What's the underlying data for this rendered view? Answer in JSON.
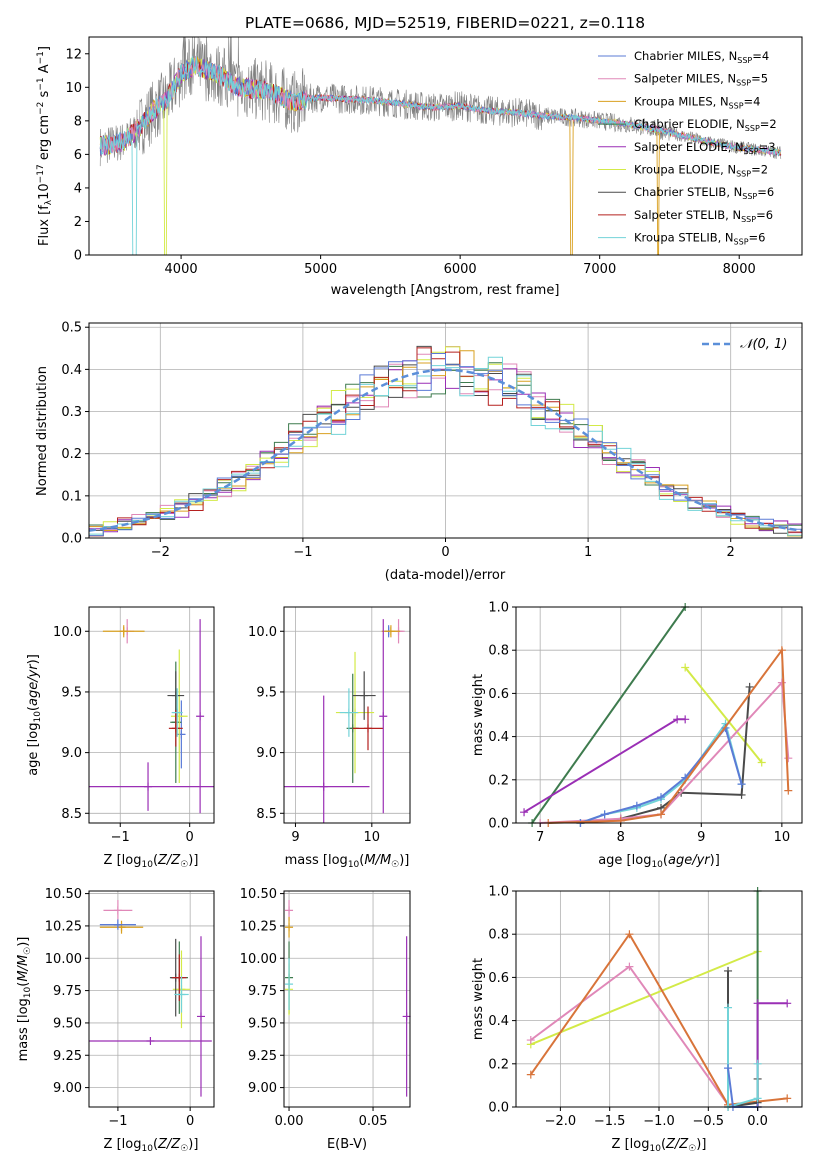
{
  "figure_title": "PLATE=0686, MJD=52519, FIBERID=0221, z=0.118",
  "colors": {
    "chab_miles": "#5b7bd6",
    "salp_miles": "#e088b8",
    "krou_miles": "#d9a020",
    "chab_elodie": "#3e7b4e",
    "salp_elodie": "#9a2fb5",
    "krou_elodie": "#d3ea47",
    "chab_stelib": "#4a4a4a",
    "salp_stelib": "#b5201f",
    "krou_stelib": "#72d3d8",
    "spectrum_gray": "#808080",
    "mix_orange": "#d8743a",
    "normal_curve": "#5b8fd9"
  },
  "chart_data": [
    {
      "id": "spectrum",
      "type": "line",
      "title": "PLATE=0686, MJD=52519, FIBERID=0221, z=0.118",
      "xlabel": "wavelength [Angstrom, rest frame]",
      "ylabel": "Flux [f_λ 10^-17 erg cm^-2 s^-1 A^-1]",
      "xlim": [
        3340,
        8450
      ],
      "ylim": [
        0,
        13
      ],
      "xticks": [
        "4000",
        "5000",
        "6000",
        "7000",
        "8000"
      ],
      "yticks": [
        "0",
        "2",
        "4",
        "6",
        "8",
        "10",
        "12"
      ],
      "legend_position": "top-right",
      "legend": [
        "Chabrier MILES, N_SSP=4",
        "Salpeter MILES, N_SSP=5",
        "Kroupa MILES, N_SSP=4",
        "Chabrier ELODIE, N_SSP=2",
        "Salpeter ELODIE, N_SSP=3",
        "Kroupa ELODIE, N_SSP=2",
        "Chabrier STELIB, N_SSP=6",
        "Salpeter STELIB, N_SSP=6",
        "Kroupa STELIB, N_SSP=6"
      ],
      "continuum_x": [
        3420,
        3500,
        3600,
        3700,
        3800,
        3900,
        4000,
        4100,
        4200,
        4300,
        4400,
        4500,
        4600,
        4700,
        4800,
        4900,
        5000,
        5200,
        5400,
        5600,
        5800,
        6000,
        6200,
        6400,
        6600,
        6800,
        7000,
        7200,
        7400,
        7600,
        7800,
        8000,
        8200,
        8300
      ],
      "continuum_y": [
        6.5,
        6.6,
        6.8,
        7.6,
        8.6,
        9.3,
        10.8,
        11.3,
        11.0,
        10.6,
        10.0,
        9.9,
        9.8,
        9.5,
        9.1,
        9.3,
        9.4,
        9.3,
        9.2,
        9.0,
        8.8,
        8.9,
        8.6,
        8.5,
        8.3,
        8.2,
        8.0,
        7.8,
        7.5,
        7.1,
        6.7,
        6.4,
        6.2,
        6.1
      ]
    },
    {
      "id": "residuals",
      "type": "histogram",
      "xlabel": "(data-model)/error",
      "ylabel": "Normed distribution",
      "xlim": [
        -2.5,
        2.5
      ],
      "ylim": [
        0,
        0.51
      ],
      "xticks": [
        "−2",
        "−1",
        "0",
        "1",
        "2"
      ],
      "yticks": [
        "0.0",
        "0.1",
        "0.2",
        "0.3",
        "0.4",
        "0.5"
      ],
      "legend": [
        "N(0,1)"
      ],
      "legend_position": "top-right",
      "bin_width": 0.1,
      "grid": true
    },
    {
      "id": "age_vs_Z",
      "type": "scatter",
      "xlabel": "Z [log10(Z/Z☉)]",
      "ylabel": "age  [log10(age/yr)]",
      "xlim": [
        -1.45,
        0.35
      ],
      "ylim": [
        8.42,
        10.2
      ],
      "xticks": [
        "−1",
        "0"
      ],
      "yticks": [
        "8.5",
        "9.0",
        "9.5",
        "10.0"
      ],
      "points": [
        {
          "k": "chab_miles",
          "x": -0.12,
          "y": 9.15,
          "ex": 0.06,
          "ey": 0.28
        },
        {
          "k": "salp_miles",
          "x": -0.9,
          "y": 10.0,
          "ex": 0.1,
          "ey": 0.1
        },
        {
          "k": "krou_miles",
          "x": -0.95,
          "y": 10.0,
          "ex": 0.3,
          "ey": 0.05
        },
        {
          "k": "chab_elodie",
          "x": -0.2,
          "y": 9.25,
          "ex": 0.08,
          "ey": 0.5
        },
        {
          "k": "salp_elodie",
          "x": -0.6,
          "y": 8.72,
          "ex": 1.7,
          "ey": 0.2
        },
        {
          "k": "krou_elodie",
          "x": -0.15,
          "y": 9.3,
          "ex": 0.12,
          "ey": 0.55
        },
        {
          "k": "chab_stelib",
          "x": -0.2,
          "y": 9.47,
          "ex": 0.12,
          "ey": 0.2
        },
        {
          "k": "salp_stelib",
          "x": -0.2,
          "y": 9.2,
          "ex": 0.1,
          "ey": 0.15
        },
        {
          "k": "krou_stelib",
          "x": -0.18,
          "y": 9.33,
          "ex": 0.08,
          "ey": 0.2
        },
        {
          "k": "salp_elodie",
          "x": 0.15,
          "y": 9.3,
          "ex": 0.0,
          "ey": 0.8
        }
      ]
    },
    {
      "id": "age_vs_mass",
      "type": "scatter",
      "xlabel": "mass [log10(M/M☉)]",
      "ylabel": "",
      "xlim": [
        8.85,
        10.5
      ],
      "ylim": [
        8.42,
        10.2
      ],
      "xticks": [
        "9",
        "10"
      ],
      "yticks": [
        "8.5",
        "9.0",
        "9.5",
        "10.0"
      ],
      "points": [
        {
          "k": "chab_miles",
          "x": 10.22,
          "y": 10.0,
          "ex": 0.05,
          "ey": 0.05
        },
        {
          "k": "salp_miles",
          "x": 10.35,
          "y": 10.0,
          "ex": 0.08,
          "ey": 0.1
        },
        {
          "k": "krou_miles",
          "x": 10.25,
          "y": 10.0,
          "ex": 0.12,
          "ey": 0.05
        },
        {
          "k": "chab_elodie",
          "x": 9.75,
          "y": 9.2,
          "ex": 0.08,
          "ey": 0.45
        },
        {
          "k": "salp_elodie",
          "x": 9.37,
          "y": 8.72,
          "ex": 0.6,
          "ey": 0.75
        },
        {
          "k": "krou_elodie",
          "x": 9.78,
          "y": 9.33,
          "ex": 0.25,
          "ey": 0.5
        },
        {
          "k": "chab_stelib",
          "x": 9.9,
          "y": 9.47,
          "ex": 0.15,
          "ey": 0.2
        },
        {
          "k": "salp_stelib",
          "x": 9.95,
          "y": 9.2,
          "ex": 0.2,
          "ey": 0.18
        },
        {
          "k": "krou_stelib",
          "x": 9.7,
          "y": 9.33,
          "ex": 0.12,
          "ey": 0.2
        },
        {
          "k": "salp_elodie",
          "x": 10.15,
          "y": 9.3,
          "ex": 0.0,
          "ey": 0.8
        }
      ]
    },
    {
      "id": "weight_vs_age",
      "type": "line",
      "xlabel": "age  [log10(age/yr)]",
      "ylabel": "mass weight",
      "xlim": [
        6.7,
        10.25
      ],
      "ylim": [
        0,
        1
      ],
      "xticks": [
        "7",
        "8",
        "9",
        "10"
      ],
      "yticks": [
        "0.0",
        "0.2",
        "0.4",
        "0.6",
        "0.8",
        "1.0"
      ],
      "grid": true,
      "series": [
        {
          "k": "chab_elodie",
          "x": [
            6.9,
            8.8
          ],
          "y": [
            0.0,
            1.0
          ]
        },
        {
          "k": "salp_elodie",
          "x": [
            6.8,
            8.7,
            8.8
          ],
          "y": [
            0.05,
            0.48,
            0.48
          ]
        },
        {
          "k": "krou_elodie",
          "x": [
            8.8,
            9.75
          ],
          "y": [
            0.72,
            0.28
          ]
        },
        {
          "k": "chab_stelib",
          "x": [
            7.5,
            8.0,
            8.5,
            8.75,
            9.5,
            9.6
          ],
          "y": [
            0.0,
            0.02,
            0.07,
            0.14,
            0.13,
            0.63
          ]
        },
        {
          "k": "salp_miles",
          "x": [
            7.0,
            8.0,
            8.5,
            10.0,
            10.08
          ],
          "y": [
            0.0,
            0.02,
            0.04,
            0.65,
            0.3
          ]
        },
        {
          "k": "krou_stelib",
          "x": [
            7.5,
            7.8,
            8.2,
            8.5,
            8.8,
            9.3,
            9.5
          ],
          "y": [
            0.0,
            0.04,
            0.07,
            0.11,
            0.2,
            0.46,
            0.18
          ]
        },
        {
          "k": "chab_miles",
          "x": [
            7.5,
            7.8,
            8.2,
            8.5,
            8.8,
            9.3,
            9.5
          ],
          "y": [
            0.0,
            0.04,
            0.08,
            0.12,
            0.21,
            0.44,
            0.18
          ]
        },
        {
          "k": "mix_orange",
          "x": [
            7.1,
            8.0,
            8.5,
            10.0,
            10.08
          ],
          "y": [
            0.0,
            0.01,
            0.04,
            0.8,
            0.15
          ]
        }
      ]
    },
    {
      "id": "mass_vs_Z",
      "type": "scatter",
      "xlabel": "Z [log10(Z/Z☉)]",
      "ylabel": "mass [log10(M/M☉)]",
      "xlim": [
        -1.4,
        0.33
      ],
      "ylim": [
        8.85,
        10.52
      ],
      "xticks": [
        "−1",
        "0"
      ],
      "yticks": [
        "9.00",
        "9.25",
        "9.50",
        "9.75",
        "10.00",
        "10.25",
        "10.50"
      ],
      "points": [
        {
          "k": "salp_miles",
          "x": -1.0,
          "y": 10.37,
          "ex": 0.2,
          "ey": 0.08
        },
        {
          "k": "krou_miles",
          "x": -0.95,
          "y": 10.24,
          "ex": 0.3,
          "ey": 0.05
        },
        {
          "k": "chab_miles",
          "x": -1.0,
          "y": 10.26,
          "ex": 0.25,
          "ey": 0.04
        },
        {
          "k": "chab_elodie",
          "x": -0.15,
          "y": 9.85,
          "ex": 0.12,
          "ey": 0.28
        },
        {
          "k": "salp_elodie",
          "x": -0.55,
          "y": 9.36,
          "ex": 0.85,
          "ey": 0.0
        },
        {
          "k": "krou_elodie",
          "x": -0.12,
          "y": 9.76,
          "ex": 0.12,
          "ey": 0.3
        },
        {
          "k": "chab_stelib",
          "x": -0.2,
          "y": 9.85,
          "ex": 0.08,
          "ey": 0.3
        },
        {
          "k": "salp_stelib",
          "x": -0.15,
          "y": 9.85,
          "ex": 0.1,
          "ey": 0.18
        },
        {
          "k": "krou_stelib",
          "x": -0.12,
          "y": 9.72,
          "ex": 0.1,
          "ey": 0.14
        },
        {
          "k": "salp_elodie",
          "x": 0.15,
          "y": 9.55,
          "ex": 0.0,
          "ey": 0.62
        }
      ]
    },
    {
      "id": "mass_vs_ebv",
      "type": "scatter",
      "xlabel": "E(B-V)",
      "ylabel": "",
      "xlim": [
        -0.003,
        0.072
      ],
      "ylim": [
        8.85,
        10.52
      ],
      "xticks": [
        "0.00",
        "0.05"
      ],
      "yticks": [
        "9.00",
        "9.25",
        "9.50",
        "9.75",
        "10.00",
        "10.25",
        "10.50"
      ],
      "points": [
        {
          "k": "salp_miles",
          "x": 0.0,
          "y": 10.37,
          "ex": 0.0,
          "ey": 0.08
        },
        {
          "k": "krou_miles",
          "x": 0.0,
          "y": 10.24,
          "ex": 0.0,
          "ey": 0.08
        },
        {
          "k": "chab_elodie",
          "x": 0.0,
          "y": 9.85,
          "ex": 0.0,
          "ey": 0.28
        },
        {
          "k": "krou_elodie",
          "x": 0.0,
          "y": 9.76,
          "ex": 0.0,
          "ey": 0.2
        },
        {
          "k": "krou_stelib",
          "x": 0.0,
          "y": 9.8,
          "ex": 0.0,
          "ey": 0.2
        },
        {
          "k": "salp_elodie",
          "x": 0.07,
          "y": 9.55,
          "ex": 0.0,
          "ey": 0.62
        }
      ]
    },
    {
      "id": "weight_vs_Z",
      "type": "line",
      "xlabel": "Z [log10(Z/Z☉)]",
      "ylabel": "mass weight",
      "xlim": [
        -2.45,
        0.45
      ],
      "ylim": [
        0,
        1
      ],
      "xticks": [
        "−2.0",
        "−1.5",
        "−1.0",
        "−0.5",
        "0.0"
      ],
      "yticks": [
        "0.0",
        "0.2",
        "0.4",
        "0.6",
        "0.8",
        "1.0"
      ],
      "grid": true,
      "series": [
        {
          "k": "krou_elodie",
          "x": [
            -2.3,
            0.0
          ],
          "y": [
            0.29,
            0.72
          ]
        },
        {
          "k": "salp_miles",
          "x": [
            -2.3,
            -1.3,
            -0.3
          ],
          "y": [
            0.31,
            0.65,
            0.01
          ]
        },
        {
          "k": "mix_orange",
          "x": [
            -2.3,
            -1.3,
            -0.3,
            0.3
          ],
          "y": [
            0.15,
            0.8,
            0.01,
            0.04
          ]
        },
        {
          "k": "chab_elodie",
          "x": [
            0.0,
            0.0
          ],
          "y": [
            0.0,
            1.0
          ]
        },
        {
          "k": "salp_elodie",
          "x": [
            0.0,
            0.0,
            0.3
          ],
          "y": [
            0.0,
            0.48,
            0.48
          ]
        },
        {
          "k": "chab_stelib",
          "x": [
            -0.3,
            -0.3,
            0.0,
            0.0
          ],
          "y": [
            0.63,
            0.0,
            0.02,
            0.13
          ]
        },
        {
          "k": "krou_stelib",
          "x": [
            -0.3,
            -0.3,
            0.0,
            0.0
          ],
          "y": [
            0.46,
            0.0,
            0.04,
            0.2
          ]
        },
        {
          "k": "chab_miles",
          "x": [
            -0.3,
            -0.25,
            0.0
          ],
          "y": [
            0.18,
            0.0,
            0.0
          ]
        }
      ]
    }
  ]
}
